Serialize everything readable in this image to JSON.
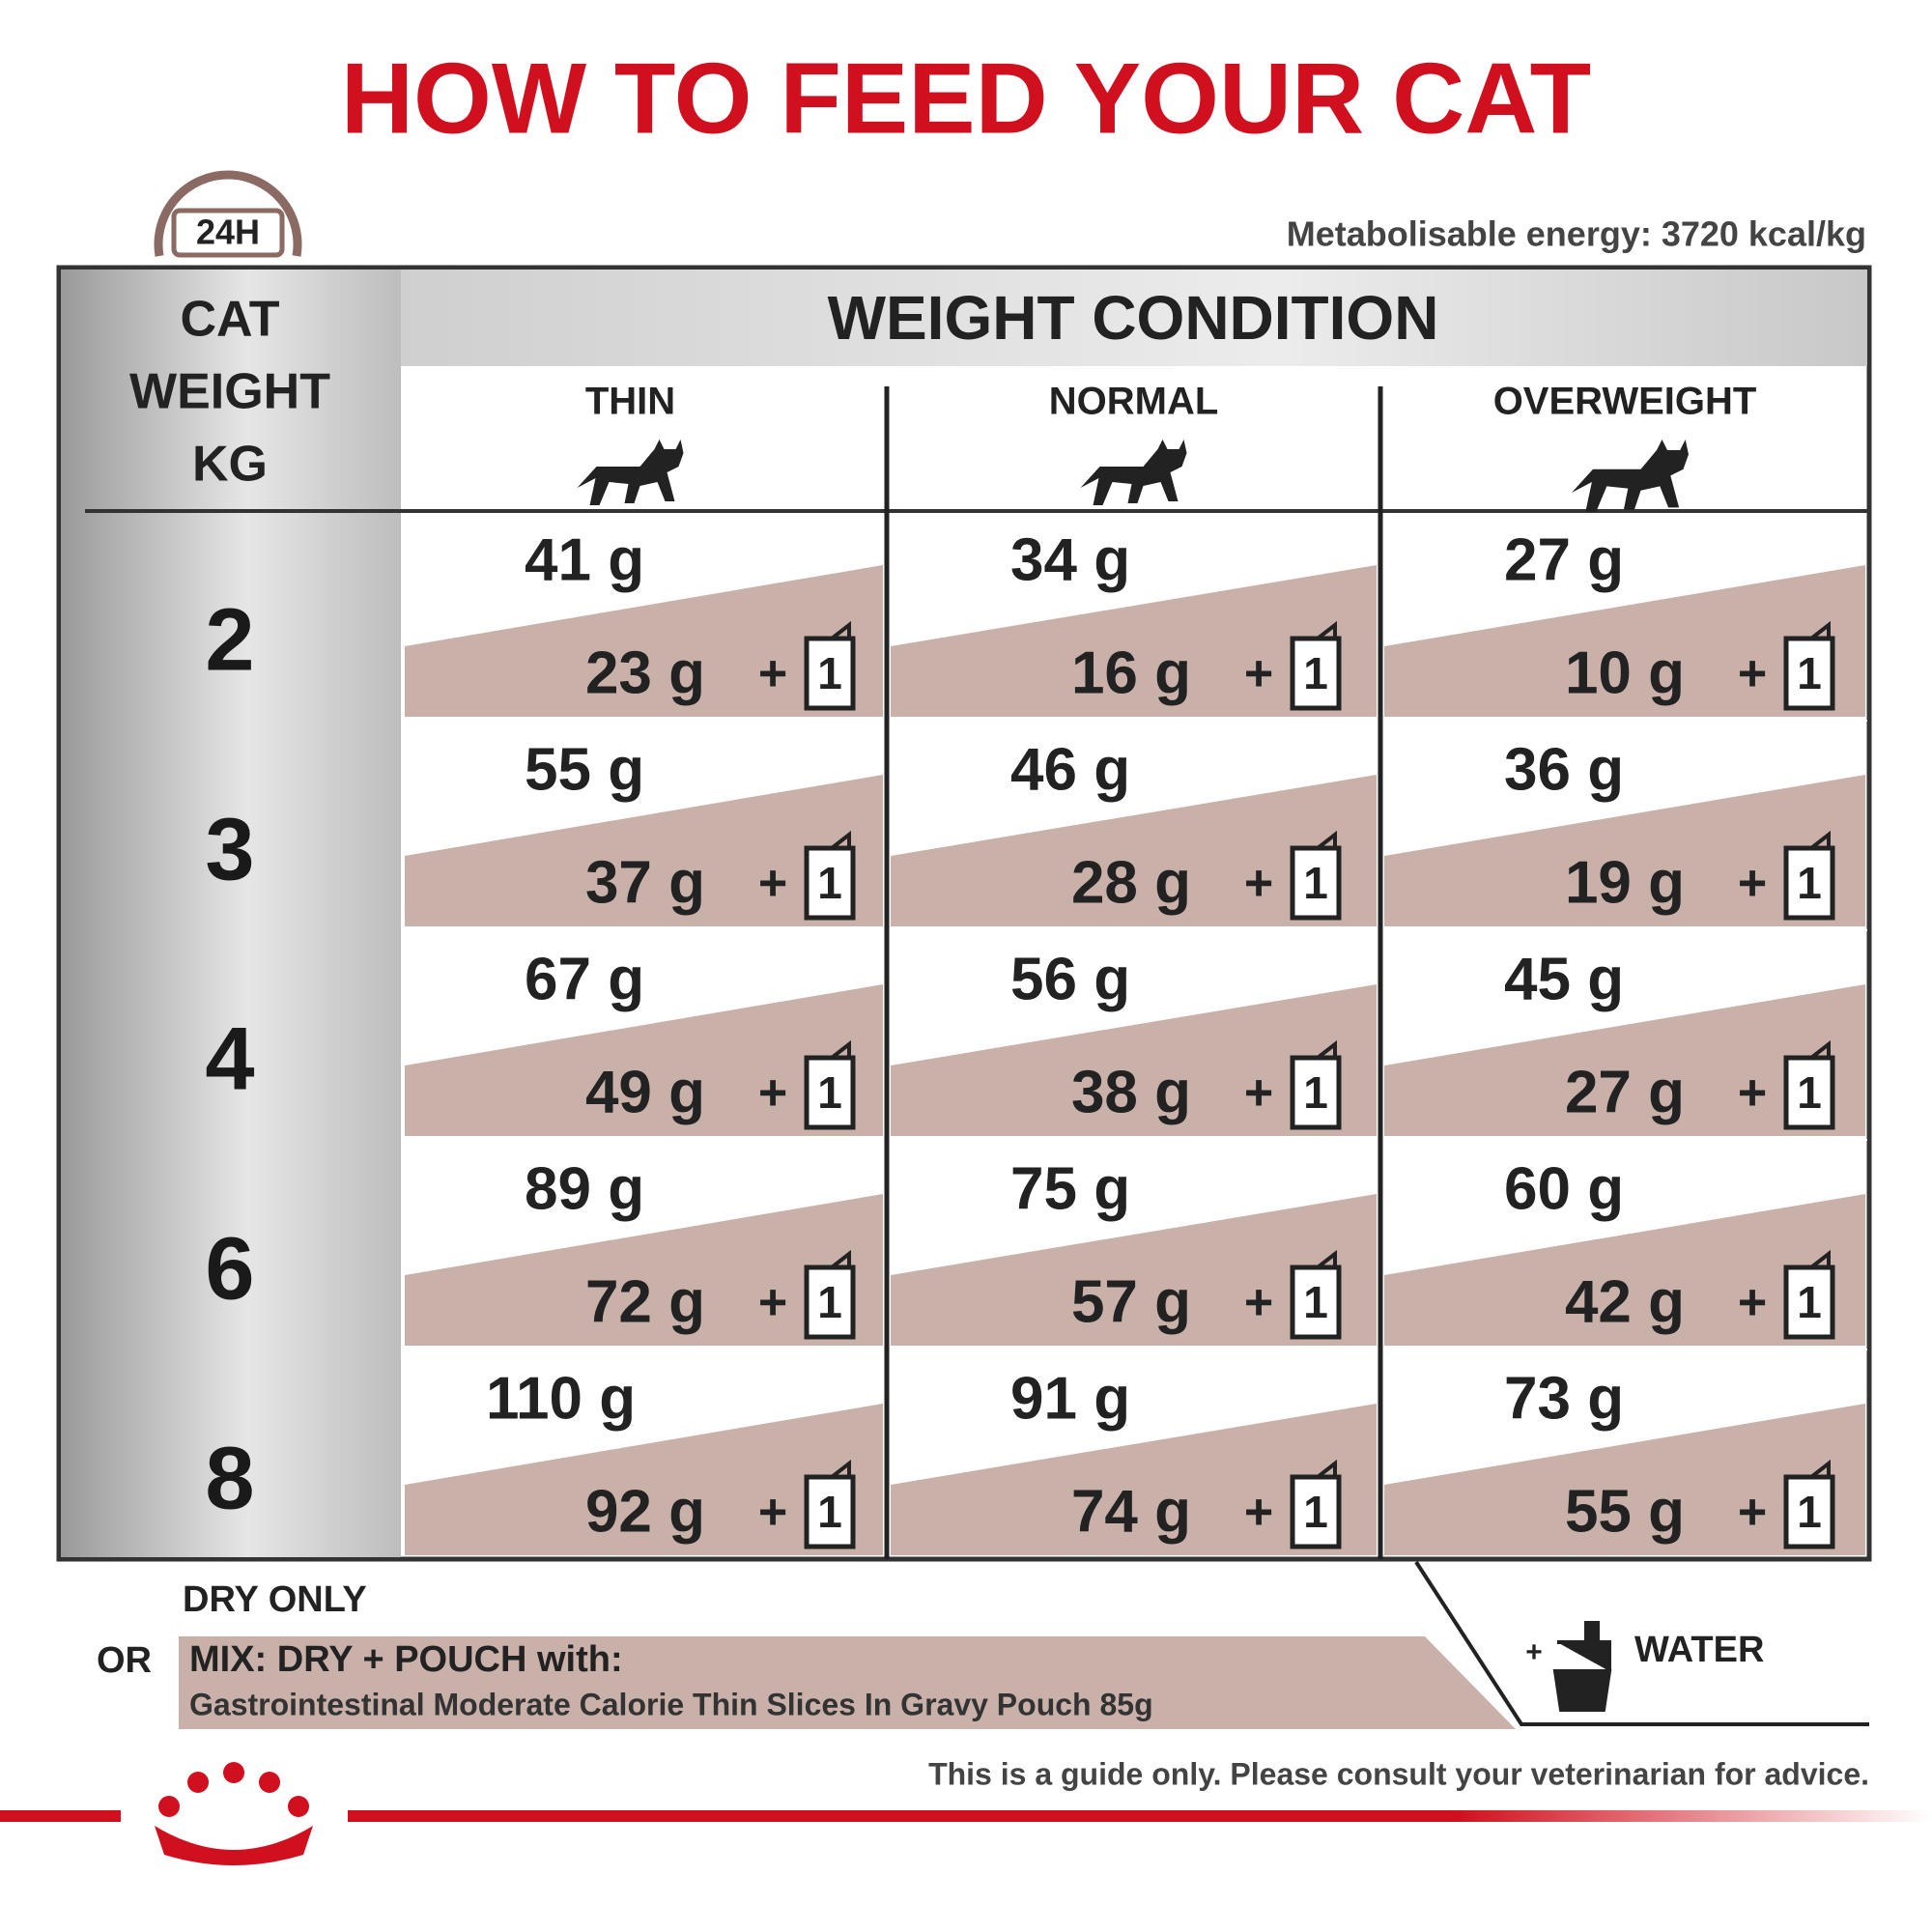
{
  "header": {
    "title": "HOW TO FEED YOUR CAT",
    "badge": "24H",
    "energy": "Metabolisable energy: 3720 kcal/kg"
  },
  "table": {
    "corner": [
      "CAT",
      "WEIGHT",
      "KG"
    ],
    "group_header": "WEIGHT CONDITION",
    "columns": [
      "THIN",
      "NORMAL",
      "OVERWEIGHT"
    ],
    "plus": "+",
    "pouch": "1",
    "rows": [
      {
        "weight": "2",
        "cells": [
          {
            "dry": "41 g",
            "mix": "23 g"
          },
          {
            "dry": "34 g",
            "mix": "16 g"
          },
          {
            "dry": "27 g",
            "mix": "10 g"
          }
        ]
      },
      {
        "weight": "3",
        "cells": [
          {
            "dry": "55 g",
            "mix": "37 g"
          },
          {
            "dry": "46 g",
            "mix": "28 g"
          },
          {
            "dry": "36 g",
            "mix": "19 g"
          }
        ]
      },
      {
        "weight": "4",
        "cells": [
          {
            "dry": "67 g",
            "mix": "49 g"
          },
          {
            "dry": "56 g",
            "mix": "38 g"
          },
          {
            "dry": "45 g",
            "mix": "27 g"
          }
        ]
      },
      {
        "weight": "6",
        "cells": [
          {
            "dry": "89 g",
            "mix": "72 g"
          },
          {
            "dry": "75 g",
            "mix": "57 g"
          },
          {
            "dry": "60 g",
            "mix": "42 g"
          }
        ]
      },
      {
        "weight": "8",
        "cells": [
          {
            "dry": "110 g",
            "mix": "92 g"
          },
          {
            "dry": "91 g",
            "mix": "74 g"
          },
          {
            "dry": "73 g",
            "mix": "55 g"
          }
        ]
      }
    ]
  },
  "legend": {
    "dry_only": "DRY ONLY",
    "or": "OR",
    "mix": "MIX: DRY + POUCH with:",
    "product": "Gastrointestinal Moderate Calorie Thin Slices In Gravy Pouch 85g",
    "water_plus": "+",
    "water": "WATER"
  },
  "footer": {
    "disclaimer": "This is a guide only. Please consult your veterinarian for advice."
  }
}
